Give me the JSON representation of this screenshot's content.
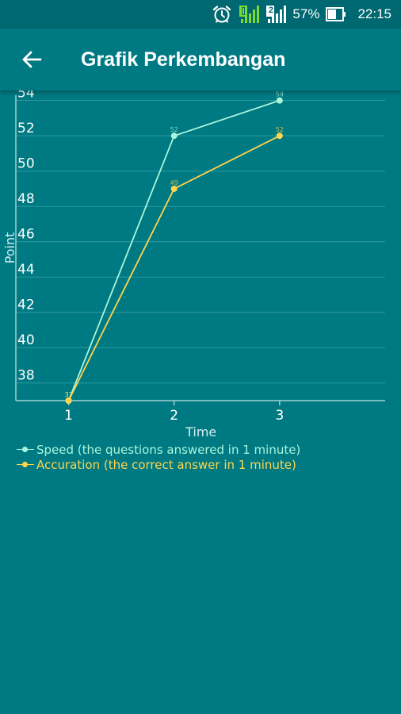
{
  "status_bar": {
    "battery": "57%",
    "time": "22:15",
    "sim2_badge": "2",
    "icons": [
      "alarm-icon",
      "signal-sim1-icon",
      "signal-sim2-icon",
      "battery-icon"
    ]
  },
  "app_bar": {
    "title": "Grafik Perkembangan",
    "back_icon": "arrow-left-icon"
  },
  "colors": {
    "background": "#007a82",
    "status_bar": "#006870",
    "speed_series": "#a9f5dc",
    "accuration_series": "#ffd54f",
    "grid": "#2c9aa0",
    "axis_text": "#ffffff"
  },
  "chart_data": {
    "type": "line",
    "x": [
      1,
      2,
      3
    ],
    "xticks": [
      "1",
      "2",
      "3"
    ],
    "xlim": [
      0.5,
      4
    ],
    "ylim": [
      37,
      54.3
    ],
    "yticks": [
      "38",
      "40",
      "42",
      "44",
      "46",
      "48",
      "50",
      "52",
      "54"
    ],
    "ytick_values": [
      38,
      40,
      42,
      44,
      46,
      48,
      50,
      52,
      54
    ],
    "xlabel": "Time",
    "ylabel": "Point",
    "grid": true,
    "legend_position": "bottom-left",
    "series": [
      {
        "name": "Speed (the questions answered in 1 minute)",
        "values": [
          37,
          52,
          54
        ],
        "data_labels": [
          "37",
          "52",
          "54"
        ],
        "color": "#a9f5dc"
      },
      {
        "name": "Accuration (the correct answer in 1 minute)",
        "values": [
          37,
          49,
          52
        ],
        "data_labels": [
          "37",
          "49",
          "52"
        ],
        "color": "#ffd54f"
      }
    ]
  }
}
